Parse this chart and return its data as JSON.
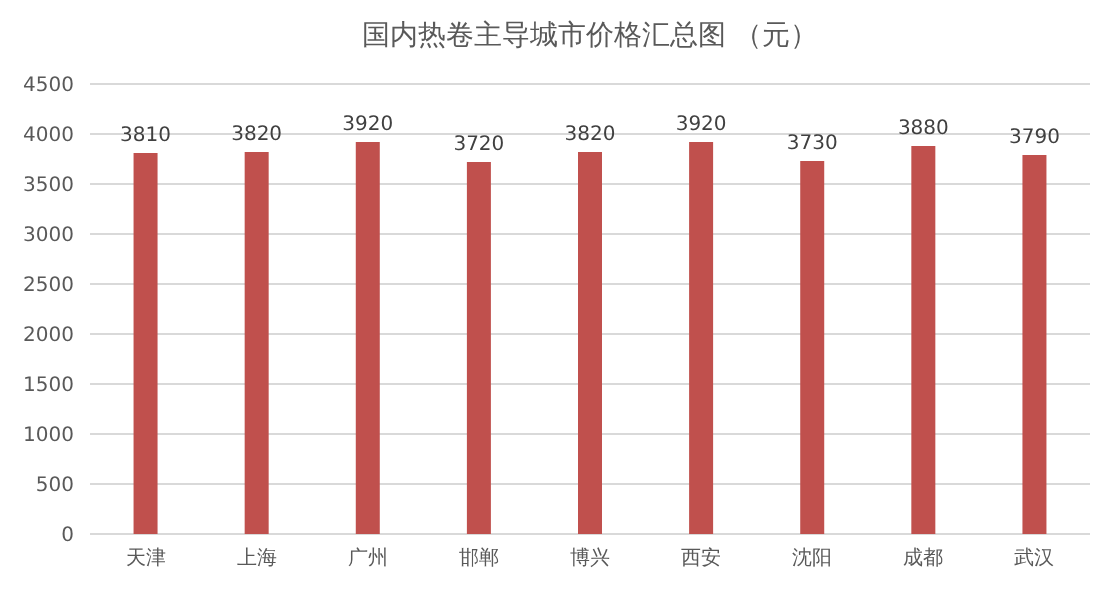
{
  "chart_data": {
    "type": "bar",
    "title": "国内热卷主导城市价格汇总图 （元）",
    "categories": [
      "天津",
      "上海",
      "广州",
      "邯郸",
      "博兴",
      "西安",
      "沈阳",
      "成都",
      "武汉"
    ],
    "values": [
      3810,
      3820,
      3920,
      3720,
      3820,
      3920,
      3730,
      3880,
      3790
    ],
    "color": "#c0504d",
    "ylim": [
      0,
      4500
    ],
    "yticks": [
      0,
      500,
      1000,
      1500,
      2000,
      2500,
      3000,
      3500,
      4000,
      4500
    ],
    "grid": "y",
    "data_labels": true
  }
}
